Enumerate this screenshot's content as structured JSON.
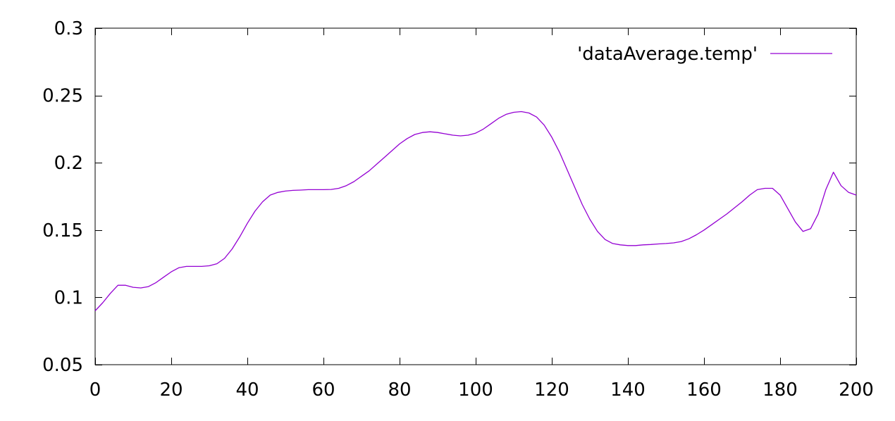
{
  "chart_data": {
    "type": "line",
    "xlim": [
      0,
      200
    ],
    "ylim": [
      0.05,
      0.3
    ],
    "xticks": [
      0,
      20,
      40,
      60,
      80,
      100,
      120,
      140,
      160,
      180,
      200
    ],
    "yticks": [
      0.05,
      0.1,
      0.15,
      0.2,
      0.25,
      0.3
    ],
    "ytick_labels": [
      "0.05",
      "0.1",
      "0.15",
      "0.2",
      "0.25",
      "0.3"
    ],
    "grid": false,
    "legend_position": "top-right",
    "series": [
      {
        "name": "'dataAverage.temp'",
        "color": "#9400d3",
        "x": [
          0,
          2,
          4,
          6,
          8,
          10,
          12,
          14,
          16,
          18,
          20,
          22,
          24,
          26,
          28,
          30,
          32,
          34,
          36,
          38,
          40,
          42,
          44,
          46,
          48,
          50,
          52,
          54,
          56,
          58,
          60,
          62,
          64,
          66,
          68,
          70,
          72,
          74,
          76,
          78,
          80,
          82,
          84,
          86,
          88,
          90,
          92,
          94,
          96,
          98,
          100,
          102,
          104,
          106,
          108,
          110,
          112,
          114,
          116,
          118,
          120,
          122,
          124,
          126,
          128,
          130,
          132,
          134,
          136,
          138,
          140,
          142,
          144,
          146,
          148,
          150,
          152,
          154,
          156,
          158,
          160,
          162,
          164,
          166,
          168,
          170,
          172,
          174,
          176,
          178,
          180,
          182,
          184,
          186,
          188,
          190,
          192,
          194,
          196,
          198,
          200
        ],
        "y": [
          0.09,
          0.096,
          0.103,
          0.109,
          0.109,
          0.1075,
          0.107,
          0.108,
          0.111,
          0.115,
          0.119,
          0.122,
          0.123,
          0.123,
          0.123,
          0.1235,
          0.125,
          0.129,
          0.136,
          0.145,
          0.155,
          0.164,
          0.171,
          0.176,
          0.178,
          0.179,
          0.1795,
          0.1797,
          0.18,
          0.18,
          0.18,
          0.1802,
          0.181,
          0.183,
          0.186,
          0.19,
          0.194,
          0.199,
          0.204,
          0.209,
          0.214,
          0.218,
          0.221,
          0.2225,
          0.223,
          0.2225,
          0.2215,
          0.2205,
          0.22,
          0.2205,
          0.222,
          0.225,
          0.229,
          0.233,
          0.236,
          0.2375,
          0.238,
          0.237,
          0.234,
          0.228,
          0.219,
          0.208,
          0.195,
          0.182,
          0.169,
          0.158,
          0.149,
          0.143,
          0.14,
          0.139,
          0.1385,
          0.1385,
          0.139,
          0.1393,
          0.1397,
          0.14,
          0.1405,
          0.1415,
          0.1435,
          0.1465,
          0.15,
          0.154,
          0.158,
          0.162,
          0.1665,
          0.171,
          0.176,
          0.18,
          0.181,
          0.181,
          0.176,
          0.166,
          0.156,
          0.149,
          0.151,
          0.162,
          0.18,
          0.193,
          0.183,
          0.178,
          0.176
        ]
      }
    ]
  }
}
